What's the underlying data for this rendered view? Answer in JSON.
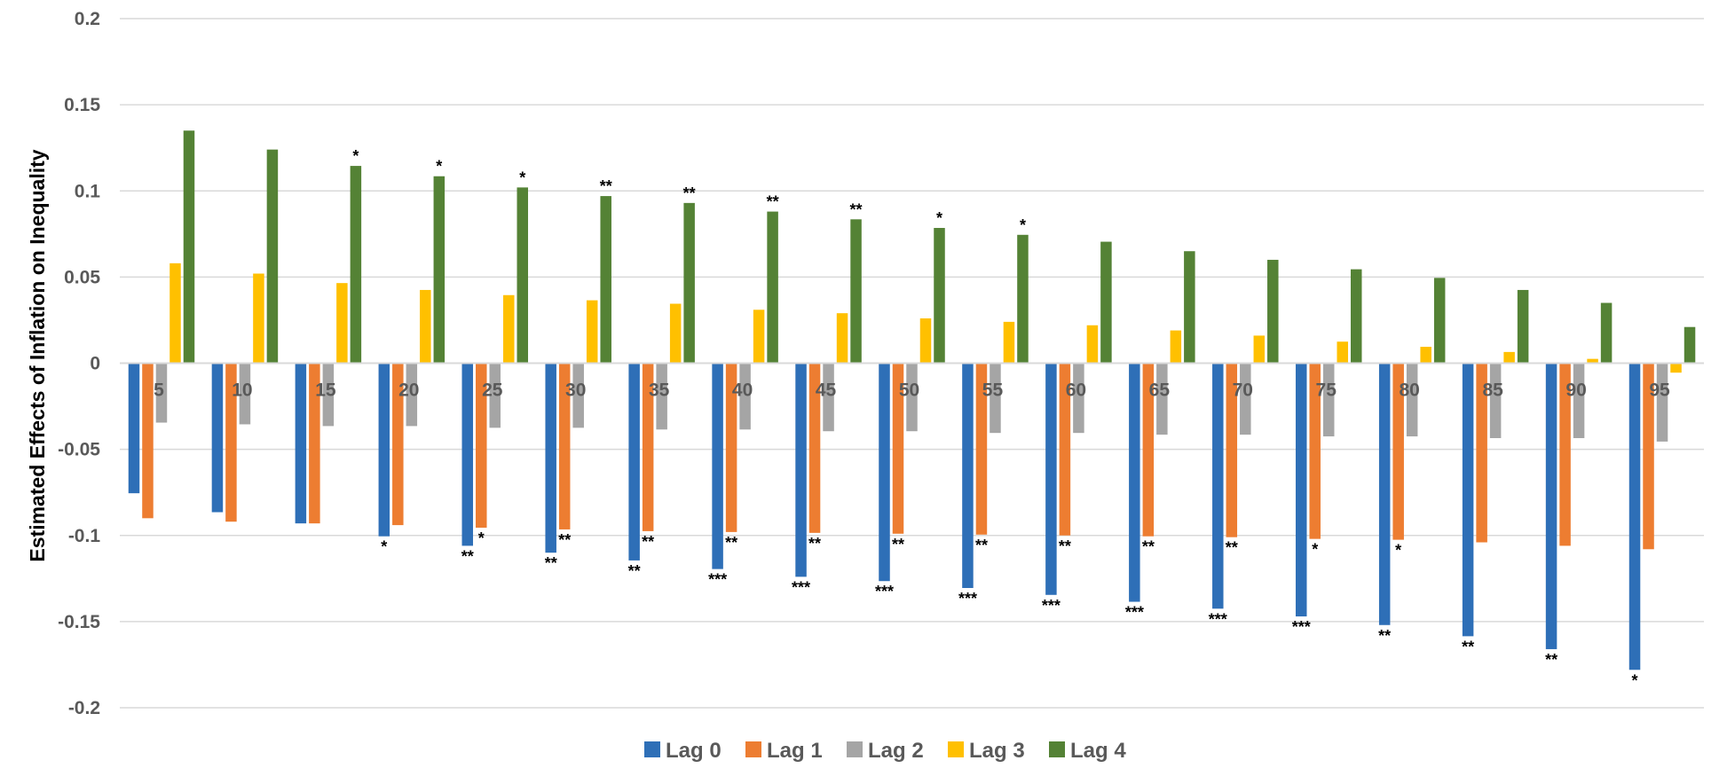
{
  "chart_data": {
    "type": "bar",
    "title": "",
    "xlabel": "",
    "ylabel": "Estimated Effects of Inflation on Inequality",
    "ylim": [
      -0.2,
      0.2
    ],
    "yticks": [
      "0.2",
      "0.15",
      "0.1",
      "0.05",
      "0",
      "-0.05",
      "-0.1",
      "-0.15",
      "-0.2"
    ],
    "ytick_values": [
      0.2,
      0.15,
      0.1,
      0.05,
      0,
      -0.05,
      -0.1,
      -0.15,
      -0.2
    ],
    "grid": true,
    "legend_position": "bottom",
    "categories": [
      "5",
      "10",
      "15",
      "20",
      "25",
      "30",
      "35",
      "40",
      "45",
      "50",
      "55",
      "60",
      "65",
      "70",
      "75",
      "80",
      "85",
      "90",
      "95"
    ],
    "series": [
      {
        "name": "Lag 0",
        "color": "#2E6FB7",
        "values": [
          -0.0755,
          -0.0865,
          -0.093,
          -0.1005,
          -0.106,
          -0.11,
          -0.1145,
          -0.1195,
          -0.124,
          -0.1265,
          -0.1305,
          -0.1345,
          -0.1385,
          -0.1425,
          -0.147,
          -0.152,
          -0.1585,
          -0.166,
          -0.178
        ],
        "significance": [
          "",
          "",
          "",
          "*",
          "**",
          "**",
          "**",
          "***",
          "***",
          "***",
          "***",
          "***",
          "***",
          "***",
          "***",
          "**",
          "**",
          "**",
          "*"
        ]
      },
      {
        "name": "Lag 1",
        "color": "#ED7D31",
        "values": [
          -0.09,
          -0.092,
          -0.093,
          -0.094,
          -0.0955,
          -0.0965,
          -0.0975,
          -0.098,
          -0.0985,
          -0.099,
          -0.0995,
          -0.1,
          -0.1005,
          -0.101,
          -0.102,
          -0.1025,
          -0.104,
          -0.106,
          -0.108
        ],
        "significance": [
          "",
          "",
          "",
          "",
          "*",
          "**",
          "**",
          "**",
          "**",
          "**",
          "**",
          "**",
          "**",
          "**",
          "*",
          "*",
          "",
          "",
          ""
        ]
      },
      {
        "name": "Lag 2",
        "color": "#A5A5A5",
        "values": [
          -0.0345,
          -0.0355,
          -0.0365,
          -0.0365,
          -0.0375,
          -0.0375,
          -0.0385,
          -0.0385,
          -0.0395,
          -0.0395,
          -0.0405,
          -0.0405,
          -0.0415,
          -0.0415,
          -0.0425,
          -0.0425,
          -0.0435,
          -0.0435,
          -0.0455
        ],
        "significance": [
          "",
          "",
          "",
          "",
          "",
          "",
          "",
          "",
          "",
          "",
          "",
          "",
          "",
          "",
          "",
          "",
          "",
          "",
          ""
        ]
      },
      {
        "name": "Lag 3",
        "color": "#FFC000",
        "values": [
          0.058,
          0.052,
          0.0465,
          0.0425,
          0.0395,
          0.0365,
          0.0345,
          0.031,
          0.029,
          0.026,
          0.024,
          0.022,
          0.019,
          0.016,
          0.0125,
          0.0095,
          0.0065,
          0.0025,
          -0.0055
        ],
        "significance": [
          "",
          "",
          "",
          "",
          "",
          "",
          "",
          "",
          "",
          "",
          "",
          "",
          "",
          "",
          "",
          "",
          "",
          "",
          ""
        ]
      },
      {
        "name": "Lag 4",
        "color": "#548235",
        "values": [
          0.135,
          0.124,
          0.1145,
          0.1085,
          0.102,
          0.097,
          0.093,
          0.088,
          0.0835,
          0.0785,
          0.0745,
          0.0705,
          0.065,
          0.06,
          0.0545,
          0.0495,
          0.0425,
          0.035,
          0.021
        ],
        "significance": [
          "",
          "",
          "*",
          "*",
          "*",
          "**",
          "**",
          "**",
          "**",
          "*",
          "*",
          "",
          "",
          "",
          "",
          "",
          "",
          "",
          ""
        ]
      }
    ]
  }
}
